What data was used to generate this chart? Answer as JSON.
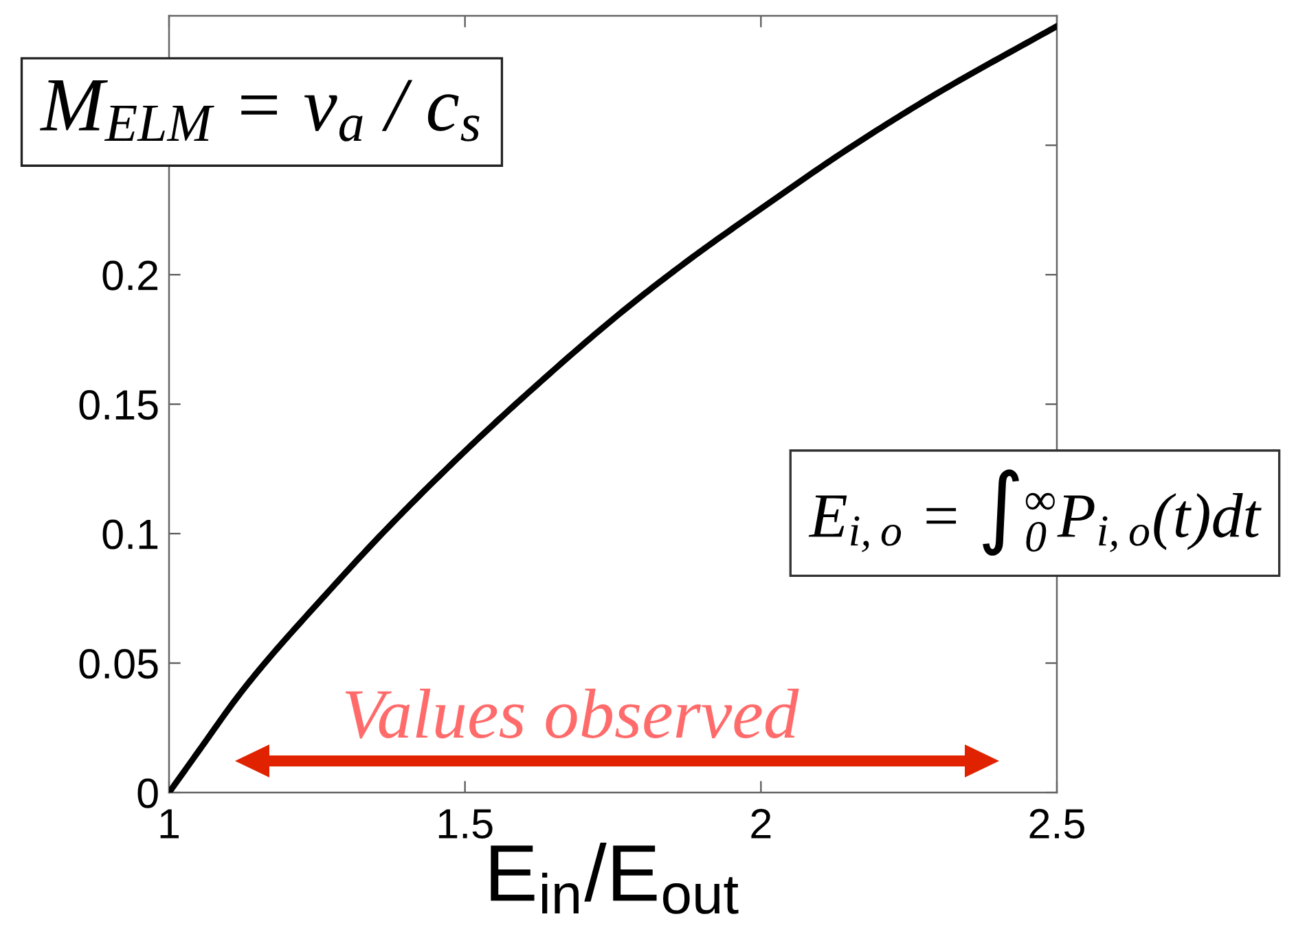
{
  "chart_data": {
    "type": "line",
    "x": [
      1.0,
      1.05,
      1.116,
      1.16,
      1.255,
      1.36,
      1.487,
      1.6,
      1.767,
      1.88,
      2.0,
      2.15,
      2.29,
      2.5
    ],
    "series": [
      {
        "color": "#000000",
        "values": [
          0,
          0.016,
          0.037,
          0.0495,
          0.074,
          0.1,
          0.129,
          0.153,
          0.186,
          0.206,
          0.2255,
          0.249,
          0.269,
          0.296
        ]
      }
    ],
    "xlabel": "E$_{in}$/E$_{out}$",
    "xlim": [
      1,
      2.5
    ],
    "xticks": [
      1,
      1.5,
      2,
      2.5
    ],
    "ylim": [
      0,
      0.3
    ],
    "yticks": [
      0,
      0.05,
      0.1,
      0.15,
      0.2,
      {
        "value": 0.25,
        "label": null
      }
    ],
    "annotations": [
      "M$_{ELM}$ = v$_{a}$ / c$_{s}$",
      "E$_{i,o}$ = ∫$^{∞}$$_{0}$P$_{i,o}$(t)dt",
      "Values observed"
    ],
    "grid": false,
    "marker": "none",
    "line_style": "solid"
  }
}
